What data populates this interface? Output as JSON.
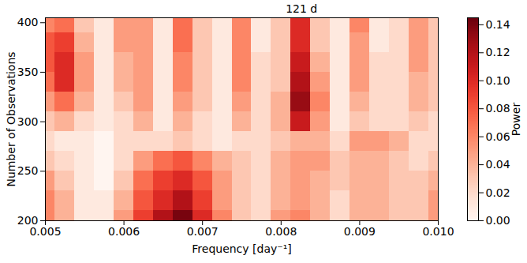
{
  "chart_data": {
    "type": "heatmap",
    "x_label": "Frequency [day⁻¹]",
    "y_label": "Number of Observations",
    "x": [
      0.005,
      0.00525,
      0.0055,
      0.00575,
      0.006,
      0.00625,
      0.0065,
      0.00675,
      0.007,
      0.00725,
      0.0075,
      0.00775,
      0.008,
      0.00825,
      0.0085,
      0.00875,
      0.009,
      0.00925,
      0.0095,
      0.00975,
      0.01
    ],
    "y": [
      200,
      220,
      240,
      260,
      280,
      300,
      320,
      340,
      360,
      380,
      400
    ],
    "z": [
      [
        0.06,
        0.04,
        0.01,
        0.01,
        0.05,
        0.09,
        0.12,
        0.14,
        0.1,
        0.06,
        0.03,
        0.02,
        0.05,
        0.06,
        0.04,
        0.02,
        0.04,
        0.04,
        0.03,
        0.03,
        0.05
      ],
      [
        0.06,
        0.04,
        0.01,
        0.01,
        0.04,
        0.08,
        0.1,
        0.12,
        0.09,
        0.05,
        0.03,
        0.02,
        0.04,
        0.05,
        0.04,
        0.02,
        0.04,
        0.04,
        0.03,
        0.03,
        0.05
      ],
      [
        0.05,
        0.03,
        0.01,
        0.0,
        0.03,
        0.07,
        0.09,
        0.1,
        0.08,
        0.05,
        0.03,
        0.02,
        0.04,
        0.05,
        0.04,
        0.03,
        0.04,
        0.04,
        0.03,
        0.03,
        0.04
      ],
      [
        0.03,
        0.02,
        0.01,
        0.0,
        0.02,
        0.05,
        0.07,
        0.08,
        0.06,
        0.04,
        0.03,
        0.02,
        0.04,
        0.05,
        0.05,
        0.03,
        0.04,
        0.04,
        0.03,
        0.02,
        0.03
      ],
      [
        0.02,
        0.01,
        0.01,
        0.0,
        0.02,
        0.02,
        0.02,
        0.03,
        0.02,
        0.01,
        0.02,
        0.02,
        0.03,
        0.04,
        0.04,
        0.02,
        0.05,
        0.05,
        0.04,
        0.02,
        0.02
      ],
      [
        0.03,
        0.04,
        0.02,
        0.01,
        0.02,
        0.04,
        0.01,
        0.04,
        0.02,
        0.01,
        0.04,
        0.02,
        0.04,
        0.11,
        0.05,
        0.01,
        0.03,
        0.02,
        0.02,
        0.03,
        0.02
      ],
      [
        0.05,
        0.07,
        0.04,
        0.01,
        0.03,
        0.05,
        0.01,
        0.05,
        0.03,
        0.01,
        0.05,
        0.02,
        0.04,
        0.13,
        0.06,
        0.01,
        0.04,
        0.02,
        0.02,
        0.04,
        0.03
      ],
      [
        0.07,
        0.1,
        0.05,
        0.01,
        0.04,
        0.05,
        0.01,
        0.06,
        0.03,
        0.01,
        0.06,
        0.02,
        0.03,
        0.12,
        0.05,
        0.01,
        0.05,
        0.02,
        0.02,
        0.04,
        0.03
      ],
      [
        0.08,
        0.1,
        0.05,
        0.01,
        0.04,
        0.05,
        0.01,
        0.06,
        0.03,
        0.01,
        0.06,
        0.02,
        0.03,
        0.11,
        0.04,
        0.01,
        0.05,
        0.02,
        0.02,
        0.05,
        0.03
      ],
      [
        0.08,
        0.09,
        0.04,
        0.01,
        0.05,
        0.05,
        0.01,
        0.07,
        0.03,
        0.01,
        0.06,
        0.01,
        0.03,
        0.1,
        0.03,
        0.01,
        0.05,
        0.01,
        0.02,
        0.05,
        0.03
      ],
      [
        0.06,
        0.07,
        0.03,
        0.01,
        0.05,
        0.05,
        0.01,
        0.07,
        0.03,
        0.01,
        0.06,
        0.01,
        0.03,
        0.1,
        0.03,
        0.01,
        0.06,
        0.01,
        0.02,
        0.05,
        0.03
      ]
    ],
    "xlim": [
      0.005,
      0.01
    ],
    "ylim": [
      200,
      405
    ],
    "xticks": [
      0.005,
      0.006,
      0.007,
      0.008,
      0.009,
      {
        "value": 0.01,
        "label": "0.010"
      }
    ],
    "yticks": [
      200,
      250,
      300,
      350,
      400
    ],
    "colorbar": {
      "label": "Power",
      "lim": [
        0,
        0.145
      ],
      "ticks": [
        {
          "value": 0,
          "label": "0.00"
        },
        0.02,
        0.04,
        0.06,
        0.08,
        {
          "value": 0.1,
          "label": "0.10"
        },
        0.12,
        0.14
      ]
    },
    "annotations": [
      {
        "text": "121 d",
        "x": 0.00826
      }
    ]
  }
}
